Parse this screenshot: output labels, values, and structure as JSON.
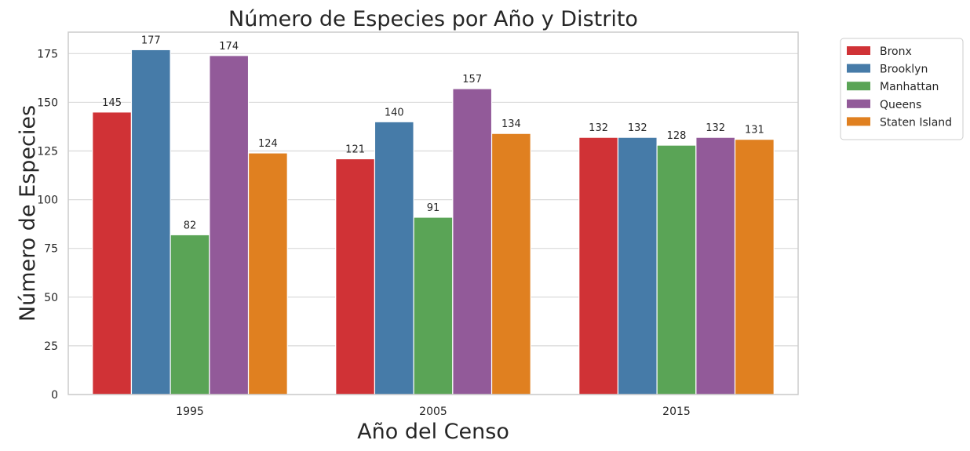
{
  "chart_data": {
    "type": "bar",
    "title": "Número de Especies por Año y Distrito",
    "xlabel": "Año del Censo",
    "ylabel": "Número de Especies",
    "categories": [
      "1995",
      "2005",
      "2015"
    ],
    "ylim": [
      0,
      186
    ],
    "yticks": [
      "0",
      "25",
      "50",
      "75",
      "100",
      "125",
      "150",
      "175"
    ],
    "grid": true,
    "legend_position": "outside-top-right",
    "series": [
      {
        "name": "Bronx",
        "color": "#d03236",
        "values": [
          145,
          121,
          132
        ]
      },
      {
        "name": "Brooklyn",
        "color": "#467ba8",
        "values": [
          177,
          140,
          132
        ]
      },
      {
        "name": "Manhattan",
        "color": "#5aa456",
        "values": [
          82,
          91,
          128
        ]
      },
      {
        "name": "Queens",
        "color": "#925a99",
        "values": [
          174,
          157,
          132
        ]
      },
      {
        "name": "Staten Island",
        "color": "#e08020",
        "values": [
          124,
          134,
          131
        ]
      }
    ]
  }
}
